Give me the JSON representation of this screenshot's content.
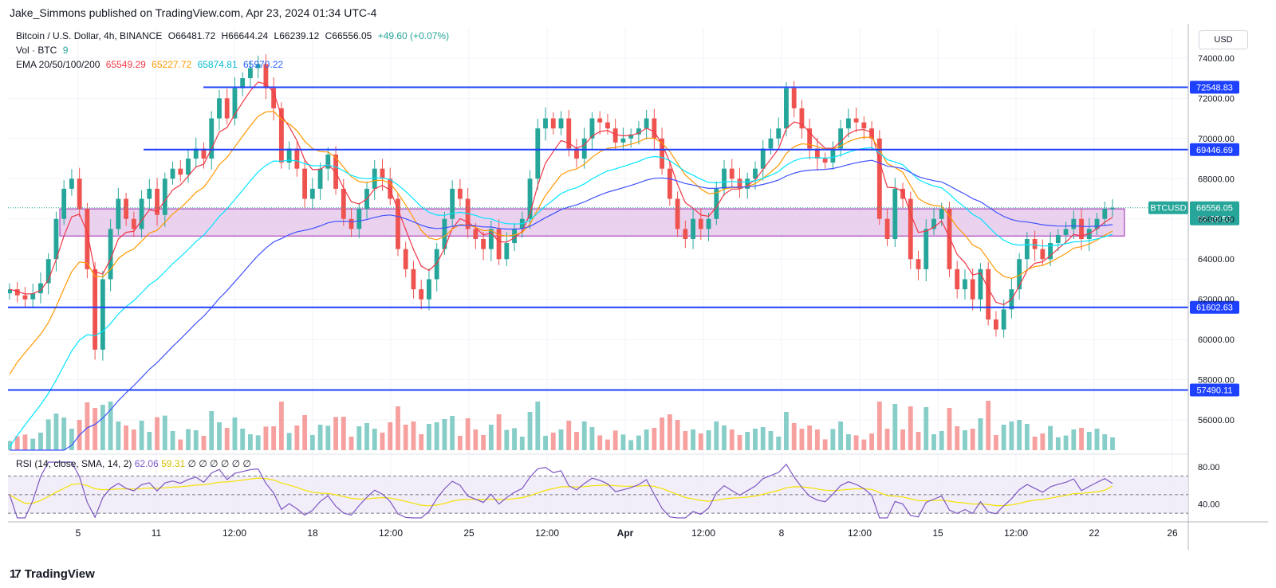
{
  "header": {
    "publisher": "Jake_Simmons published on TradingView.com, Apr 23, 2024 01:34 UTC-4"
  },
  "legend": {
    "symbol": "Bitcoin / U.S. Dollar, 4h, BINANCE",
    "open": "O66481.72",
    "high": "H66644.24",
    "low": "L66239.12",
    "close": "C66556.05",
    "change": "+49.60 (+0.07%)",
    "volume_label": "Vol · BTC",
    "volume_value": "9",
    "ema_label": "EMA 20/50/100/200",
    "ema20": "65549.29",
    "ema50": "65227.72",
    "ema100": "65874.81",
    "ema200": "65970.22"
  },
  "rsi_legend": {
    "label": "RSI (14, close, SMA, 14, 2)",
    "rsi": "62.06",
    "sma": "59.31",
    "hidden_symbols": "∅ ∅ ∅ ∅ ∅ ∅"
  },
  "currency_button": "USD",
  "price_tags": {
    "symbol": "BTCUSD",
    "last_price": "66556.05",
    "countdown": "02:25:53"
  },
  "footer": {
    "logo_mark": "17",
    "brand": "TradingView"
  },
  "colors": {
    "up": "#26a69a",
    "down": "#ef5350",
    "level_line": "#1e40ff",
    "zone_fill": "#e1bee7",
    "zone_border": "#9c27b0",
    "ema20": "#f23645",
    "ema50": "#ff9800",
    "ema100": "#00e5ff",
    "ema200": "#3f51ff",
    "rsi_line": "#7e57c2",
    "rsi_sma": "#f5e100",
    "ema_text_20": "#f23645",
    "ema_text_50": "#ff9800",
    "ema_text_100": "#00bcd4",
    "ema_text_200": "#2962ff"
  },
  "chart_data": {
    "type": "candlestick",
    "title": "Bitcoin / U.S. Dollar, 4h, BINANCE",
    "x_tick_labels": [
      "5",
      "11",
      "12:00",
      "18",
      "12:00",
      "25",
      "12:00",
      "Apr",
      "12:00",
      "8",
      "12:00",
      "15",
      "12:00",
      "22",
      "26"
    ],
    "y_tick_labels": [
      "74000.00",
      "72000.00",
      "70000.00",
      "68000.00",
      "66000.00",
      "64000.00",
      "62000.00",
      "60000.00",
      "58000.00",
      "56000.00"
    ],
    "ylim": [
      54500,
      75500
    ],
    "horizontal_levels": [
      72548.83,
      69446.69,
      61602.63,
      57490.11
    ],
    "horizontal_level_labels": [
      "72548.83",
      "69446.69",
      "61602.63",
      "57490.11"
    ],
    "support_zone": {
      "low": 65150,
      "high": 66500
    },
    "last_price": 66556.05,
    "close_series": [
      62500,
      62200,
      62000,
      62300,
      62800,
      64000,
      66000,
      67500,
      68000,
      66500,
      63500,
      59500,
      63000,
      65500,
      67000,
      66000,
      65500,
      67000,
      67500,
      66200,
      68000,
      68500,
      68200,
      69000,
      69500,
      69000,
      71000,
      72000,
      71000,
      72500,
      73000,
      73500,
      73700,
      72500,
      71500,
      68800,
      69500,
      68500,
      67000,
      67500,
      68500,
      69200,
      67500,
      66000,
      65500,
      66500,
      67500,
      68500,
      68000,
      67000,
      64500,
      63500,
      62500,
      62000,
      63000,
      64500,
      66000,
      67500,
      67000,
      65500,
      65000,
      64500,
      65500,
      64000,
      64800,
      65500,
      66000,
      68000,
      70500,
      71000,
      70500,
      71000,
      69500,
      69000,
      70000,
      71000,
      70800,
      70500,
      69800,
      70000,
      70200,
      70500,
      71000,
      70000,
      68500,
      67000,
      65500,
      65000,
      66000,
      65500,
      66000,
      67500,
      68500,
      68000,
      67500,
      68000,
      68500,
      69500,
      70000,
      70500,
      72500,
      71500,
      70500,
      69500,
      69000,
      68800,
      69500,
      70500,
      71000,
      70800,
      70500,
      70000,
      66000,
      65000,
      67500,
      67000,
      64000,
      63500,
      65500,
      66000,
      66500,
      63500,
      62500,
      63000,
      62000,
      63500,
      61000,
      60500,
      61500,
      62500,
      64000,
      65000,
      64500,
      64000,
      64800,
      65200,
      65500,
      66000,
      65000,
      65500,
      66000,
      66500,
      66556
    ],
    "rsi_ylim": [
      25,
      85
    ],
    "rsi_tick_labels": [
      "80.00",
      "40.00"
    ],
    "rsi_band": [
      70,
      30
    ],
    "rsi_last": 62.06,
    "rsi_sma_last": 59.31
  }
}
